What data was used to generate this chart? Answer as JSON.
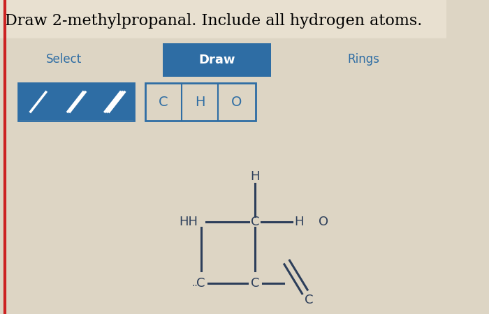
{
  "title": "Draw 2-methylpropanal. Include all hydrogen atoms.",
  "title_fontsize": 16,
  "bg_color": "#ddd5c4",
  "title_bg": "#e8e0d0",
  "toolbar": {
    "select_label": "Select",
    "draw_label": "Draw",
    "rings_label": "Rings",
    "draw_bg": "#2e6da4",
    "draw_text_color": "#ffffff",
    "toolbar_text_color": "#2e6da4"
  },
  "bond_buttons": {
    "bg": "#2e6da4",
    "border": "#ffffff"
  },
  "atom_buttons": {
    "labels": [
      "C",
      "H",
      "O"
    ],
    "border_color": "#2e6da4",
    "bg": "#ddd5c4"
  },
  "molecule": {
    "text_color": "#2c3e5a",
    "bond_color": "#2c3e5a"
  },
  "red_bar_color": "#8b2020"
}
